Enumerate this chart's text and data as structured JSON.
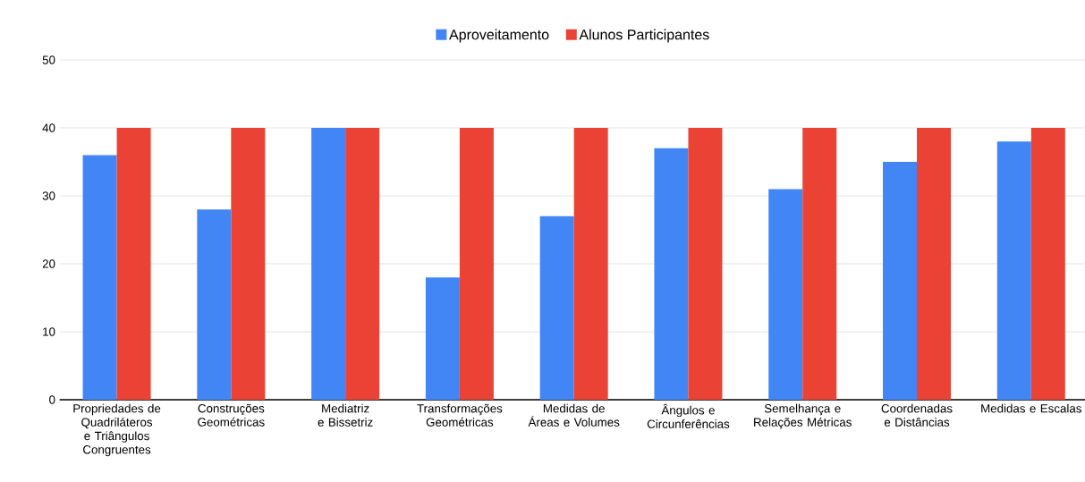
{
  "chart_data": {
    "type": "bar",
    "categories": [
      "Propriedades de Quadriláteros e Triângulos Congruentes",
      "Construções Geométricas",
      "Mediatriz e Bissetriz",
      "Transformações Geométricas",
      "Medidas de Áreas e Volumes",
      "Ângulos e Circunferências",
      "Semelhança e Relações Métricas",
      "Coordenadas e Distâncias",
      "Medidas e Escalas"
    ],
    "series": [
      {
        "name": "Aproveitamento",
        "color": "#4285f4",
        "values": [
          36,
          28,
          40,
          18,
          27,
          37,
          31,
          35,
          38
        ]
      },
      {
        "name": "Alunos Participantes",
        "color": "#ea4335",
        "values": [
          40,
          40,
          40,
          40,
          40,
          40,
          40,
          40,
          40
        ]
      }
    ],
    "ylim": [
      0,
      50
    ],
    "yticks": [
      0,
      10,
      20,
      30,
      40,
      50
    ],
    "grid": "y",
    "legend": "top"
  }
}
